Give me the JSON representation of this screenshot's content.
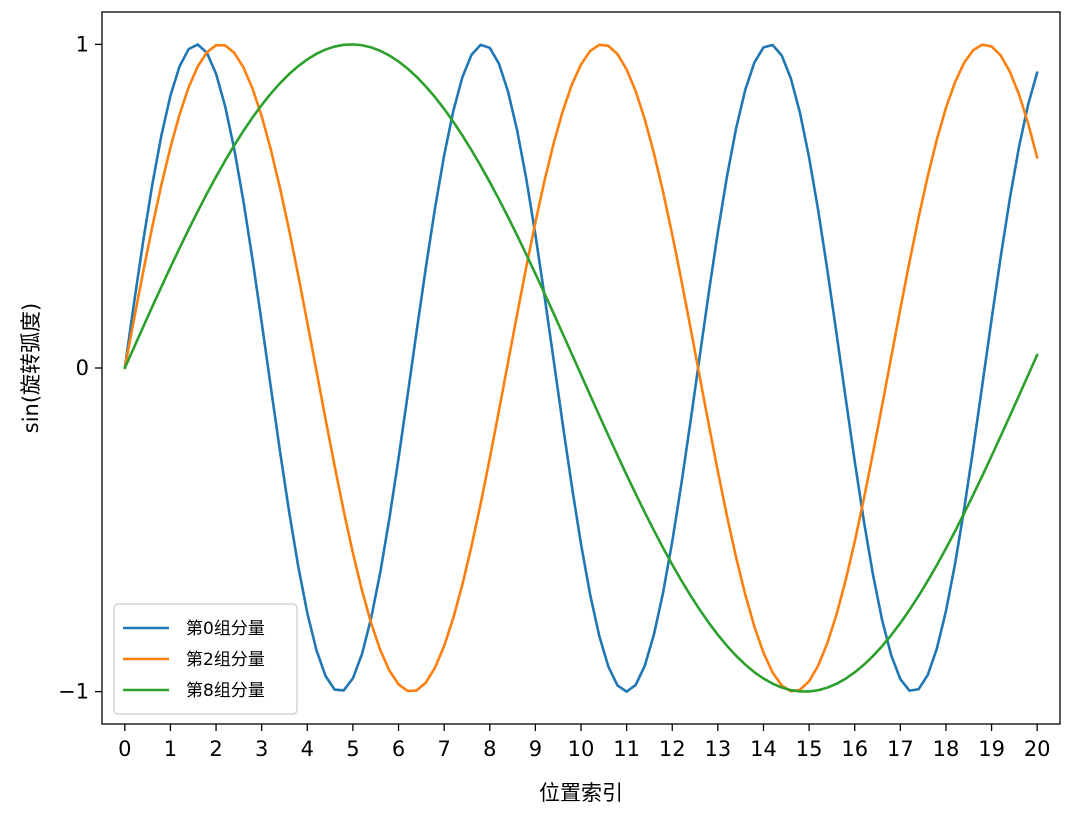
{
  "chart_data": {
    "type": "line",
    "xlabel": "位置索引",
    "ylabel": "sin(旋转弧度)",
    "xlim": [
      -0.5,
      20.5
    ],
    "ylim": [
      -1.1,
      1.1
    ],
    "xticks": [
      0,
      1,
      2,
      3,
      4,
      5,
      6,
      7,
      8,
      9,
      10,
      11,
      12,
      13,
      14,
      15,
      16,
      17,
      18,
      19,
      20
    ],
    "yticks": [
      -1,
      0,
      1
    ],
    "ytick_labels": [
      "−1",
      "0",
      "1"
    ],
    "grid": false,
    "legend_position": "lower-left",
    "x_range": [
      0,
      20
    ],
    "series": [
      {
        "name": "第0组分量",
        "frequency": 1.0,
        "color": "#1f77b4"
      },
      {
        "name": "第2组分量",
        "frequency": 0.75,
        "color": "#ff7f0e"
      },
      {
        "name": "第8组分量",
        "frequency": 0.3162,
        "color": "#2ca02c"
      }
    ]
  }
}
